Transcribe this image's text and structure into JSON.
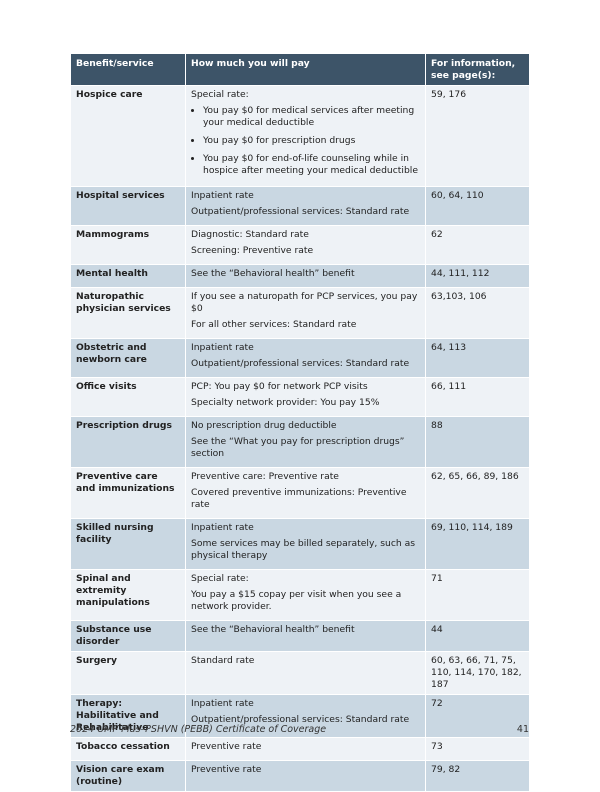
{
  "table": {
    "header": [
      "Benefit/service",
      "How much you will pay",
      "For information, see page(s):"
    ],
    "rows": [
      {
        "benefit": "Hospice care",
        "pay": [
          "Special rate:"
        ],
        "bullets": [
          "You pay $0 for medical services after meeting your medical deductible",
          "You pay $0 for prescription drugs",
          "You pay $0 for end-of-life counseling while in hospice after meeting your medical deductible"
        ],
        "pages": "59, 176"
      },
      {
        "benefit": "Hospital services",
        "pay": [
          "Inpatient rate",
          "Outpatient/professional services: Standard rate"
        ],
        "pages": "60, 64, 110"
      },
      {
        "benefit": "Mammograms",
        "pay": [
          "Diagnostic: Standard rate",
          "Screening: Preventive rate"
        ],
        "pages": "62"
      },
      {
        "benefit": "Mental health",
        "pay": [
          "See the “Behavioral health” benefit"
        ],
        "pages": "44, 111, 112"
      },
      {
        "benefit": "Naturopathic physician services",
        "pay": [
          "If you see a naturopath for PCP services, you pay $0",
          "For all other services: Standard rate"
        ],
        "pages": "63,103, 106"
      },
      {
        "benefit": "Obstetric and newborn care",
        "pay": [
          "Inpatient rate",
          "Outpatient/professional services: Standard rate"
        ],
        "pages": "64, 113"
      },
      {
        "benefit": "Office visits",
        "pay": [
          "PCP: You pay $0 for network PCP visits",
          "Specialty network provider: You pay 15%"
        ],
        "pages": "66, 111"
      },
      {
        "benefit": "Prescription drugs",
        "pay": [
          "No prescription drug deductible",
          "See the “What you pay for prescription drugs” section"
        ],
        "pages": "88"
      },
      {
        "benefit": "Preventive care and immunizations",
        "pay": [
          "Preventive care: Preventive rate",
          "Covered preventive immunizations: Preventive rate"
        ],
        "pages": "62, 65, 66, 89, 186"
      },
      {
        "benefit": "Skilled nursing facility",
        "pay": [
          "Inpatient rate",
          "Some services may be billed separately, such as physical therapy"
        ],
        "pages": "69, 110, 114, 189"
      },
      {
        "benefit": "Spinal and extremity manipulations",
        "pay": [
          "Special rate:",
          "You pay a $15 copay per visit when you see a network provider."
        ],
        "pages": "71"
      },
      {
        "benefit": "Substance use disorder",
        "pay": [
          "See the “Behavioral health” benefit"
        ],
        "pages": "44"
      },
      {
        "benefit": "Surgery",
        "pay": [
          "Standard rate"
        ],
        "pages": "60, 63, 66, 71, 75, 110, 114, 170, 182, 187"
      },
      {
        "benefit": "Therapy: Habilitative and Rehabilitative",
        "pay": [
          "Inpatient rate",
          "Outpatient/professional services: Standard rate"
        ],
        "pages": "72"
      },
      {
        "benefit": "Tobacco cessation",
        "pay": [
          "Preventive rate"
        ],
        "pages": "73"
      },
      {
        "benefit": "Vision care exam (routine)",
        "pay": [
          "Preventive rate"
        ],
        "pages": "79, 82"
      }
    ]
  },
  "footer": {
    "title": "2024 UMP Plus–PSHVN (PEBB) Certificate of Coverage",
    "page": "41"
  }
}
